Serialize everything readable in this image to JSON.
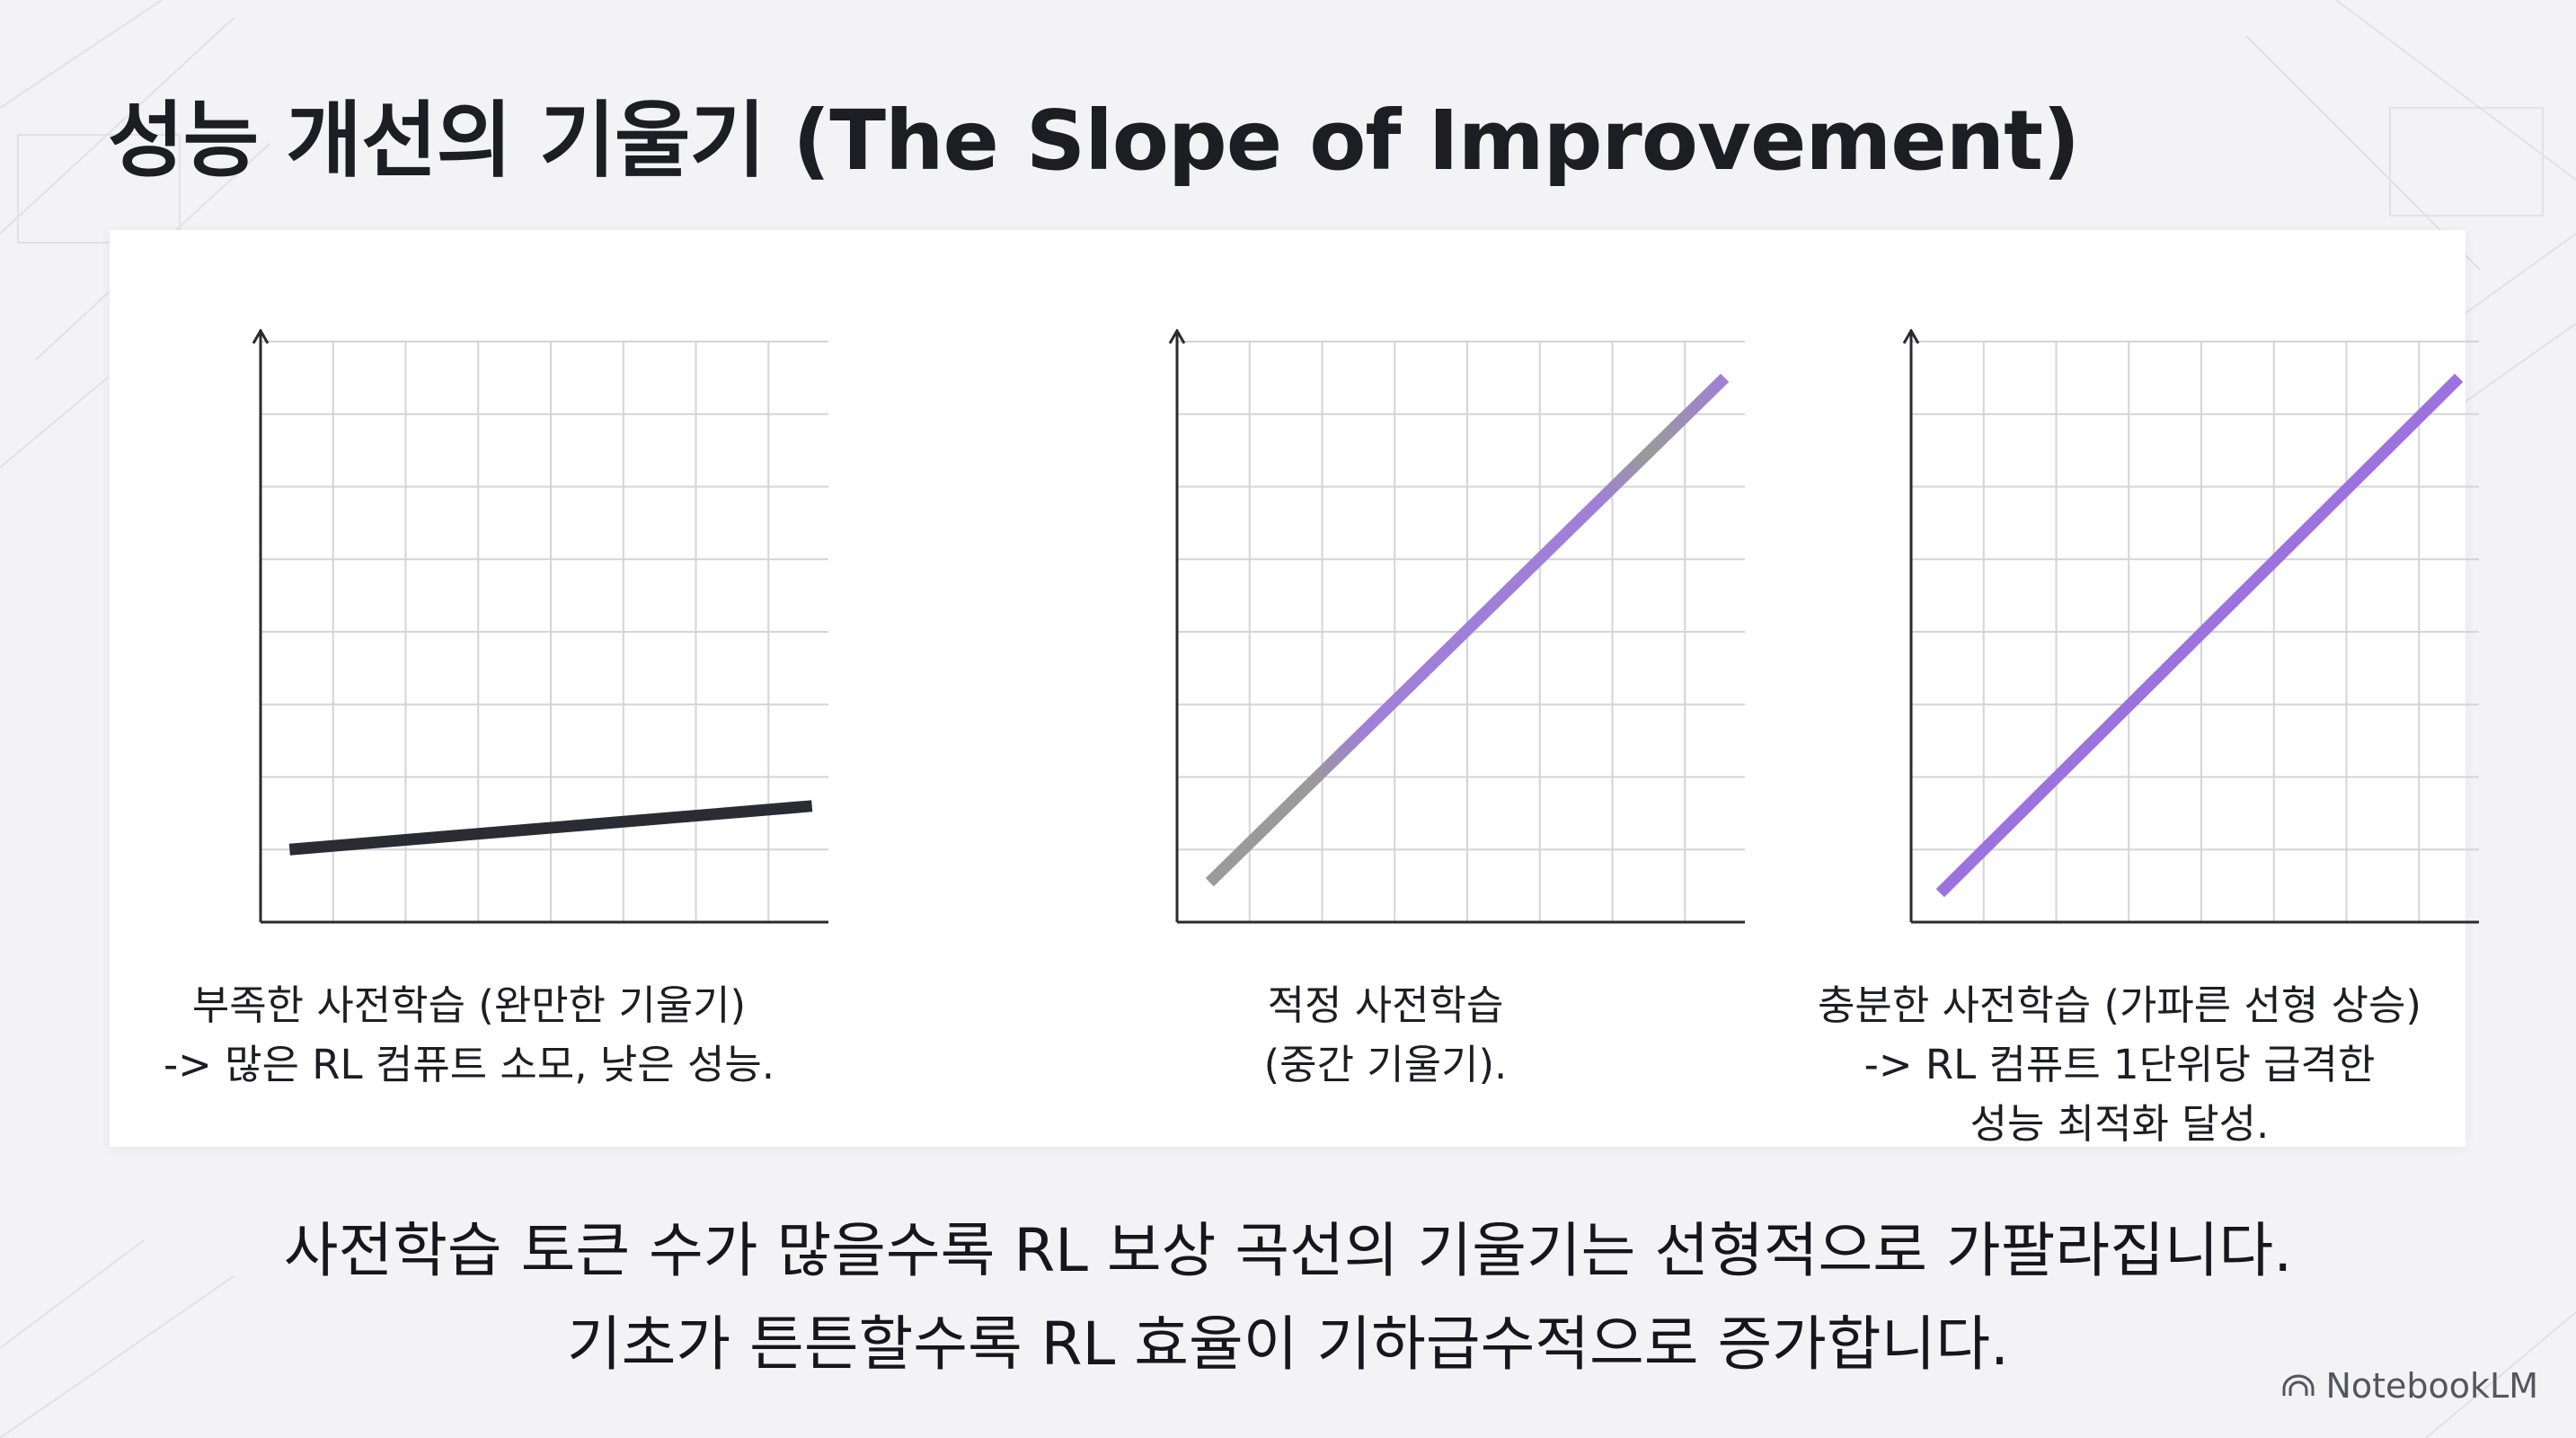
{
  "title": "성능 개선의 기울기 (The Slope of Improvement)",
  "chart_data": [
    {
      "type": "line",
      "caption": [
        "부족한 사전학습 (완만한 기울기)",
        "-> 많은 RL 컴퓨트 소모, 낮은 성능."
      ],
      "x_range": [
        0,
        8
      ],
      "y_range": [
        0,
        8
      ],
      "series": [
        {
          "x": [
            0.4,
            7.6
          ],
          "y": [
            1.0,
            1.6
          ],
          "color": "#2b2b33"
        }
      ]
    },
    {
      "type": "line",
      "caption": [
        "적정 사전학습",
        "(중간 기울기)."
      ],
      "x_range": [
        0,
        8
      ],
      "y_range": [
        0,
        8
      ],
      "series": [
        {
          "x": [
            0.45,
            7.55
          ],
          "y": [
            0.55,
            7.5
          ],
          "color": "#a07fd8",
          "gradient_to": "#9a9a9a"
        }
      ]
    },
    {
      "type": "line",
      "caption": [
        "충분한 사전학습 (가파른 선형 상승)",
        "-> RL 컴퓨트 1단위당 급격한",
        "성능 최적화 달성."
      ],
      "x_range": [
        0,
        8
      ],
      "y_range": [
        0,
        8
      ],
      "series": [
        {
          "x": [
            0.4,
            7.55
          ],
          "y": [
            0.4,
            7.5
          ],
          "color": "#9b72de"
        }
      ]
    }
  ],
  "summary": [
    "사전학습 토큰 수가 많을수록 RL 보상 곡선의 기울기는 선형적으로 가팔라집니다.",
    "기초가 튼튼할수록 RL 효율이 기하급수적으로 증가합니다."
  ],
  "brand": "NotebookLM",
  "colors": {
    "background": "#f3f3f5",
    "card": "#ffffff",
    "grid": "#d4d4d8",
    "axis": "#2a2a30",
    "accent": "#9b72de"
  }
}
